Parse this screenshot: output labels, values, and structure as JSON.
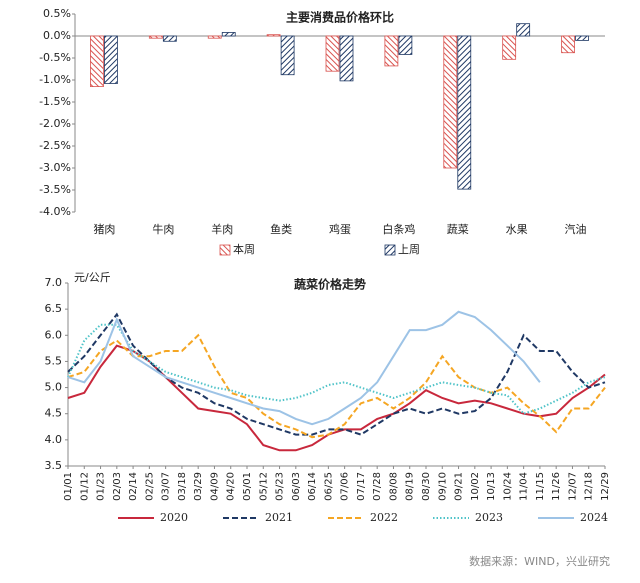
{
  "chart_data": [
    {
      "type": "bar",
      "title": "主要消费品价格环比",
      "categories": [
        "猪肉",
        "牛肉",
        "羊肉",
        "鱼类",
        "鸡蛋",
        "白条鸡",
        "蔬菜",
        "水果",
        "汽油"
      ],
      "series": [
        {
          "name": "本周",
          "color": "#d9534f",
          "values": [
            -1.15,
            -0.05,
            -0.05,
            0.03,
            -0.8,
            -0.68,
            -3.0,
            -0.53,
            -0.38
          ]
        },
        {
          "name": "上周",
          "color": "#1f3864",
          "values": [
            -1.08,
            -0.12,
            0.08,
            -0.88,
            -1.02,
            -0.42,
            -3.48,
            0.28,
            -0.1
          ]
        }
      ],
      "ylim": [
        -4.0,
        0.5
      ],
      "yticks": [
        {
          "value": 0.5,
          "label": "0.5%"
        },
        {
          "value": 0,
          "label": "0.0%"
        },
        {
          "value": -0.5,
          "label": "-0.5%"
        },
        {
          "value": -1.0,
          "label": "-1.0%"
        },
        {
          "value": -1.5,
          "label": "-1.5%"
        },
        {
          "value": -2.0,
          "label": "-2.0%"
        },
        {
          "value": -2.5,
          "label": "-2.5%"
        },
        {
          "value": -3.0,
          "label": "-3.0%"
        },
        {
          "value": -3.5,
          "label": "-3.5%"
        },
        {
          "value": -4.0,
          "label": "-4.0%"
        }
      ],
      "hatch": true,
      "legend": "bottom"
    },
    {
      "type": "line",
      "title": "蔬菜价格走势",
      "y_label": "元/公斤",
      "categories": [
        "01/01",
        "01/12",
        "01/23",
        "02/03",
        "02/14",
        "02/25",
        "03/07",
        "03/18",
        "03/29",
        "04/09",
        "04/20",
        "05/01",
        "05/12",
        "05/23",
        "06/03",
        "06/14",
        "06/25",
        "07/06",
        "07/17",
        "07/28",
        "08/08",
        "08/19",
        "08/30",
        "09/10",
        "09/21",
        "10/02",
        "10/13",
        "10/24",
        "11/04",
        "11/15",
        "11/26",
        "12/07",
        "12/18",
        "12/29"
      ],
      "series": [
        {
          "name": "2020",
          "color": "#c8283c",
          "style": "solid",
          "values": [
            4.8,
            4.9,
            5.4,
            5.8,
            5.7,
            5.5,
            5.2,
            4.9,
            4.6,
            4.55,
            4.5,
            4.3,
            3.9,
            3.8,
            3.8,
            3.9,
            4.1,
            4.2,
            4.2,
            4.4,
            4.5,
            4.7,
            4.95,
            4.8,
            4.7,
            4.75,
            4.7,
            4.6,
            4.5,
            4.45,
            4.5,
            4.8,
            5.0,
            5.25
          ]
        },
        {
          "name": "2021",
          "color": "#1f3864",
          "style": "dashed",
          "values": [
            5.3,
            5.6,
            6.0,
            6.4,
            5.8,
            5.5,
            5.2,
            5.0,
            4.9,
            4.7,
            4.6,
            4.4,
            4.3,
            4.2,
            4.1,
            4.1,
            4.2,
            4.2,
            4.1,
            4.3,
            4.5,
            4.6,
            4.5,
            4.6,
            4.5,
            4.55,
            4.8,
            5.3,
            6.0,
            5.7,
            5.7,
            5.3,
            5.0,
            5.1
          ]
        },
        {
          "name": "2022",
          "color": "#f5a623",
          "style": "dashed",
          "values": [
            5.2,
            5.3,
            5.7,
            5.9,
            5.6,
            5.6,
            5.7,
            5.7,
            6.0,
            5.4,
            4.9,
            4.8,
            4.5,
            4.3,
            4.2,
            4.05,
            4.1,
            4.3,
            4.7,
            4.8,
            4.6,
            4.8,
            5.1,
            5.6,
            5.2,
            5.0,
            4.9,
            5.0,
            4.7,
            4.45,
            4.15,
            4.6,
            4.6,
            5.0
          ]
        },
        {
          "name": "2023",
          "color": "#4fc3c8",
          "style": "dotted",
          "values": [
            5.2,
            5.9,
            6.2,
            6.2,
            5.7,
            5.5,
            5.3,
            5.2,
            5.1,
            5.0,
            4.95,
            4.85,
            4.8,
            4.75,
            4.8,
            4.9,
            5.05,
            5.1,
            5.0,
            4.9,
            4.8,
            4.9,
            5.0,
            5.1,
            5.05,
            5.0,
            4.9,
            4.85,
            4.5,
            4.6,
            4.75,
            4.9,
            5.1,
            5.2
          ]
        },
        {
          "name": "2024",
          "color": "#9dc3e6",
          "style": "solid",
          "values": [
            5.2,
            5.1,
            5.5,
            6.3,
            5.6,
            5.4,
            5.2,
            5.1,
            5.0,
            4.9,
            4.8,
            4.7,
            4.6,
            4.55,
            4.4,
            4.3,
            4.4,
            4.6,
            4.8,
            5.1,
            5.6,
            6.1,
            6.1,
            6.2,
            6.45,
            6.35,
            6.1,
            5.8,
            5.5,
            5.1,
            null,
            null,
            null,
            null
          ]
        }
      ],
      "ylim": [
        3.5,
        7.0
      ],
      "yticks": [
        3.5,
        {
          "value": 4.0,
          "label": "4.0"
        },
        4.5,
        {
          "value": 5.0,
          "label": "5.0"
        },
        5.5,
        {
          "value": 6.0,
          "label": "6.0"
        },
        6.5,
        {
          "value": 7.0,
          "label": "7.0"
        }
      ],
      "legend": "bottom"
    }
  ],
  "source": "数据来源：WIND，兴业研究"
}
